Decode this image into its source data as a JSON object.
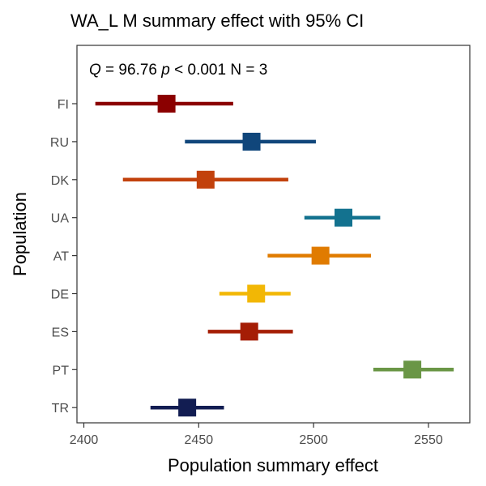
{
  "chart_data": {
    "type": "forest",
    "title": "WA_L M summary effect with 95% CI",
    "xlabel": "Population summary effect",
    "ylabel": "Population",
    "xlim": [
      2397,
      2568
    ],
    "xticks": [
      2400,
      2450,
      2500,
      2550
    ],
    "annotation": {
      "q_symbol": "Q",
      "q_text": " = 96.76  ",
      "p_symbol": "p",
      "p_text": " < 0.001  N = 3"
    },
    "grid": false,
    "legend": "none",
    "points": [
      {
        "label": "FI",
        "estimate": 2436,
        "lower": 2405,
        "upper": 2465,
        "color": "#8b0000"
      },
      {
        "label": "RU",
        "estimate": 2473,
        "lower": 2444,
        "upper": 2501,
        "color": "#10467b"
      },
      {
        "label": "DK",
        "estimate": 2453,
        "lower": 2417,
        "upper": 2489,
        "color": "#c2410c"
      },
      {
        "label": "UA",
        "estimate": 2513,
        "lower": 2496,
        "upper": 2529,
        "color": "#13728f"
      },
      {
        "label": "AT",
        "estimate": 2503,
        "lower": 2480,
        "upper": 2525,
        "color": "#e07b00"
      },
      {
        "label": "DE",
        "estimate": 2475,
        "lower": 2459,
        "upper": 2490,
        "color": "#f2b705"
      },
      {
        "label": "ES",
        "estimate": 2472,
        "lower": 2454,
        "upper": 2491,
        "color": "#a51d05"
      },
      {
        "label": "PT",
        "estimate": 2543,
        "lower": 2526,
        "upper": 2561,
        "color": "#6a9646"
      },
      {
        "label": "TR",
        "estimate": 2445,
        "lower": 2429,
        "upper": 2461,
        "color": "#121d52"
      }
    ]
  }
}
